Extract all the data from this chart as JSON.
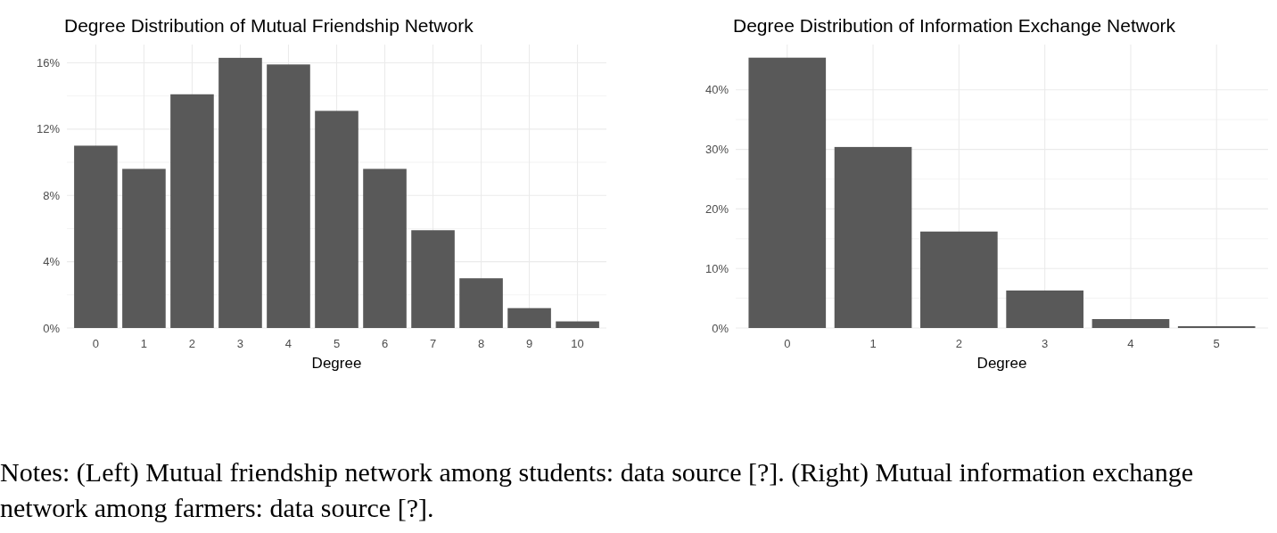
{
  "chart_data": [
    {
      "type": "bar",
      "title": "Degree Distribution of Mutual Friendship Network",
      "xlabel": "Degree",
      "categories": [
        "0",
        "1",
        "2",
        "3",
        "4",
        "5",
        "6",
        "7",
        "8",
        "9",
        "10"
      ],
      "values": [
        11.0,
        9.6,
        14.1,
        16.3,
        15.9,
        13.1,
        9.6,
        5.9,
        3.0,
        1.2,
        0.4
      ],
      "color": "#595959",
      "ylim": [
        0,
        17.1
      ],
      "yticks": [
        {
          "value": 0,
          "label": "0%"
        },
        {
          "value": 2,
          "label": null
        },
        {
          "value": 4,
          "label": "4%"
        },
        {
          "value": 6,
          "label": null
        },
        {
          "value": 8,
          "label": "8%"
        },
        {
          "value": 10,
          "label": null
        },
        {
          "value": 12,
          "label": "12%"
        },
        {
          "value": 14,
          "label": null
        },
        {
          "value": 16,
          "label": "16%"
        }
      ],
      "grid": true
    },
    {
      "type": "bar",
      "title": "Degree Distribution of Information Exchange Network",
      "xlabel": "Degree",
      "categories": [
        "0",
        "1",
        "2",
        "3",
        "4",
        "5"
      ],
      "values": [
        45.4,
        30.4,
        16.2,
        6.3,
        1.5,
        0.3
      ],
      "color": "#595959",
      "ylim": [
        0,
        47.6
      ],
      "yticks": [
        {
          "value": 0,
          "label": "0%"
        },
        {
          "value": 5,
          "label": null
        },
        {
          "value": 10,
          "label": "10%"
        },
        {
          "value": 15,
          "label": null
        },
        {
          "value": 20,
          "label": "20%"
        },
        {
          "value": 25,
          "label": null
        },
        {
          "value": 30,
          "label": "30%"
        },
        {
          "value": 35,
          "label": null
        },
        {
          "value": 40,
          "label": "40%"
        }
      ],
      "grid": true,
      "annotations": [
        "Notes: (Left) Mutual friendship network among students: data source [?]. (Right) Mutual information exchange network among farmers: data source [?]."
      ]
    }
  ]
}
